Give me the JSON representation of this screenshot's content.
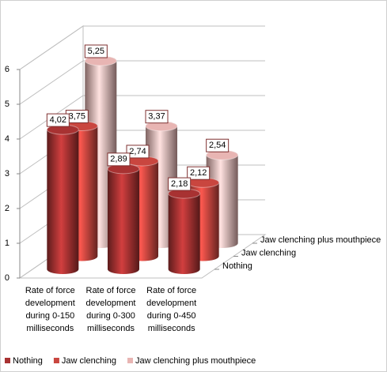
{
  "chart_data": {
    "type": "bar3d",
    "categories": [
      "Rate of force development during 0-150 milliseconds",
      "Rate of force development during 0-300 milliseconds",
      "Rate of force development during 0-450 milliseconds"
    ],
    "series": [
      {
        "name": "Nothing",
        "color": "#a83232",
        "values": [
          4.02,
          2.89,
          2.18
        ],
        "value_labels": [
          "4,02",
          "2,89",
          "2,18"
        ]
      },
      {
        "name": "Jaw clenching",
        "color": "#c9463f",
        "values": [
          3.75,
          2.74,
          2.12
        ],
        "value_labels": [
          "3,75",
          "2,74",
          "2,12"
        ]
      },
      {
        "name": "Jaw clenching plus mouthpiece",
        "color": "#e8b5b3",
        "values": [
          5.25,
          3.37,
          2.54
        ],
        "value_labels": [
          "5,25",
          "3,37",
          "2,54"
        ]
      }
    ],
    "ylim": [
      0,
      6
    ],
    "yticks": [
      0,
      1,
      2,
      3,
      4,
      5,
      6
    ],
    "grid": true
  }
}
